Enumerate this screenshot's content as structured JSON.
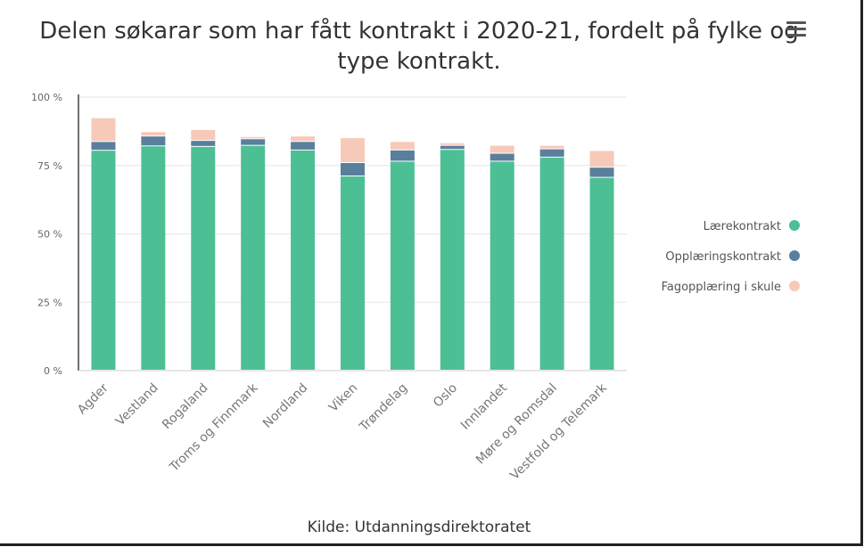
{
  "title": "Delen søkarar som har fått kontrakt i 2020-21, fordelt på fylke og type kontrakt.",
  "menu_icon": "hamburger-menu-icon",
  "source": "Kilde: Utdanningsdirektoratet",
  "chart_data": {
    "type": "bar",
    "stacked": true,
    "title": "Delen søkarar som har fått kontrakt i 2020-21, fordelt på fylke og type kontrakt.",
    "xlabel": "",
    "ylabel": "",
    "ylim": [
      0,
      100
    ],
    "yticks": [
      "0 %",
      "25 %",
      "50 %",
      "75 %",
      "100 %"
    ],
    "ytick_values": [
      0,
      25,
      50,
      75,
      100
    ],
    "grid": true,
    "legend_position": "right",
    "categories": [
      "Agder",
      "Vestland",
      "Rogaland",
      "Troms og Finnmark",
      "Nordland",
      "Viken",
      "Trøndelag",
      "Oslo",
      "Innlandet",
      "Møre og Romsdal",
      "Vestfold og Telemark"
    ],
    "series": [
      {
        "name": "Lærekontrakt",
        "color": "#4dbf95",
        "values": [
          80.4,
          82.0,
          81.8,
          82.2,
          80.5,
          71.0,
          76.4,
          80.7,
          76.4,
          77.9,
          70.5
        ]
      },
      {
        "name": "Opplæringskontrakt",
        "color": "#5a7f9c",
        "values": [
          3.2,
          3.6,
          2.2,
          2.4,
          3.1,
          4.9,
          4.1,
          1.5,
          2.9,
          3.0,
          3.7
        ]
      },
      {
        "name": "Fagopplæring i skule",
        "color": "#f7c9b8",
        "values": [
          8.7,
          1.6,
          4.0,
          0.8,
          2.0,
          9.1,
          3.1,
          0.9,
          2.9,
          1.3,
          6.1
        ]
      }
    ]
  }
}
